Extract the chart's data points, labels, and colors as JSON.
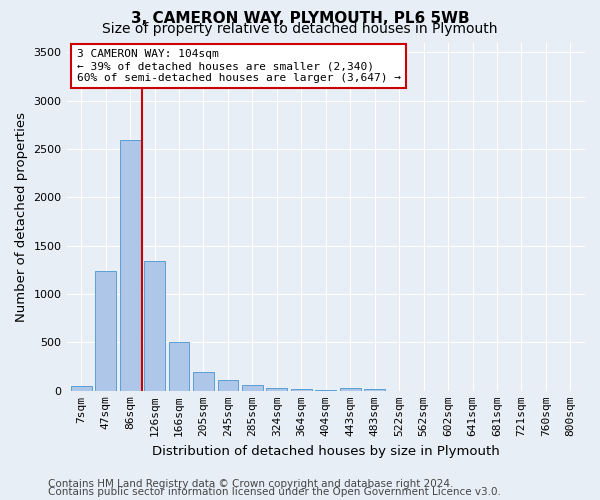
{
  "title": "3, CAMERON WAY, PLYMOUTH, PL6 5WB",
  "subtitle": "Size of property relative to detached houses in Plymouth",
  "xlabel": "Distribution of detached houses by size in Plymouth",
  "ylabel": "Number of detached properties",
  "footer_line1": "Contains HM Land Registry data © Crown copyright and database right 2024.",
  "footer_line2": "Contains public sector information licensed under the Open Government Licence v3.0.",
  "bar_labels": [
    "7sqm",
    "47sqm",
    "86sqm",
    "126sqm",
    "166sqm",
    "205sqm",
    "245sqm",
    "285sqm",
    "324sqm",
    "364sqm",
    "404sqm",
    "443sqm",
    "483sqm",
    "522sqm",
    "562sqm",
    "602sqm",
    "641sqm",
    "681sqm",
    "721sqm",
    "760sqm",
    "800sqm"
  ],
  "bar_values": [
    50,
    1240,
    2590,
    1340,
    500,
    195,
    110,
    55,
    30,
    20,
    10,
    25,
    20,
    0,
    0,
    0,
    0,
    0,
    0,
    0,
    0
  ],
  "bar_color": "#aec6e8",
  "bar_edge_color": "#5a9fd4",
  "vline_x": 2.5,
  "property_line_label": "3 CAMERON WAY: 104sqm",
  "annotation_line1": "← 39% of detached houses are smaller (2,340)",
  "annotation_line2": "60% of semi-detached houses are larger (3,647) →",
  "annotation_box_facecolor": "#ffffff",
  "annotation_box_edgecolor": "#cc0000",
  "vline_color": "#cc0000",
  "ylim": [
    0,
    3600
  ],
  "yticks": [
    0,
    500,
    1000,
    1500,
    2000,
    2500,
    3000,
    3500
  ],
  "bg_color": "#e8eef5",
  "plot_bg_color": "#e8eef5",
  "grid_color": "#ffffff",
  "title_fontsize": 11,
  "subtitle_fontsize": 10,
  "axis_label_fontsize": 9.5,
  "tick_fontsize": 8,
  "footer_fontsize": 7.5,
  "annotation_fontsize": 8
}
